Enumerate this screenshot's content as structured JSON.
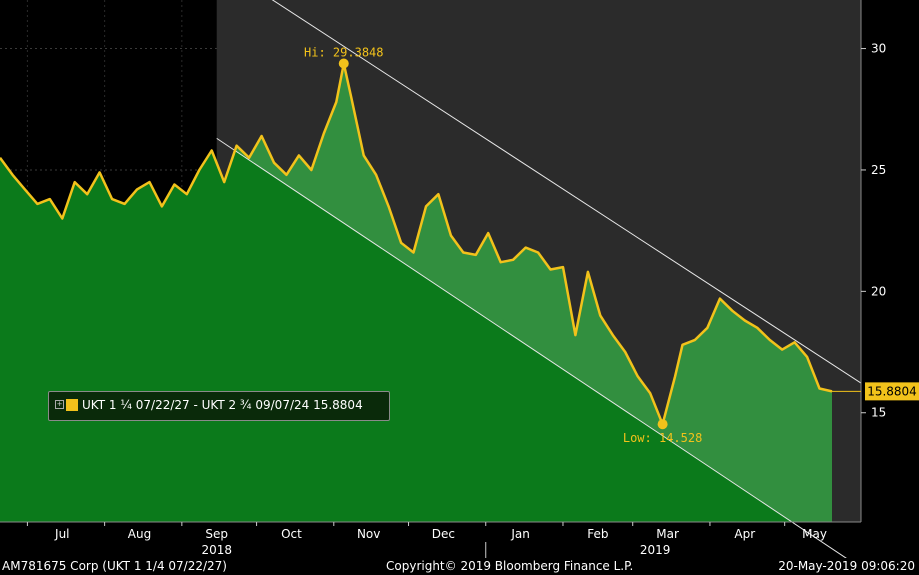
{
  "chart_data": {
    "type": "area",
    "title": "",
    "xlabel": "",
    "ylabel": "",
    "ylim": [
      10.5,
      32
    ],
    "y_ticks": [
      15,
      20,
      25,
      30
    ],
    "month_labels": [
      "Jul",
      "Aug",
      "Sep",
      "Oct",
      "Nov",
      "Dec",
      "Jan",
      "Feb",
      "Mar",
      "Apr",
      "May"
    ],
    "year_labels": [
      "2018",
      "2019"
    ],
    "series": [
      {
        "name": "UKT 1 ¼ 07/22/27 - UKT 2 ¾ 09/07/24",
        "color": "#f2c21b",
        "fill": "#0b7a1b",
        "x": [
          "2018-06-20",
          "2018-06-25",
          "2018-06-30",
          "2018-07-05",
          "2018-07-10",
          "2018-07-15",
          "2018-07-20",
          "2018-07-25",
          "2018-07-30",
          "2018-08-04",
          "2018-08-09",
          "2018-08-14",
          "2018-08-19",
          "2018-08-24",
          "2018-08-29",
          "2018-09-03",
          "2018-09-08",
          "2018-09-13",
          "2018-09-18",
          "2018-09-23",
          "2018-09-28",
          "2018-10-03",
          "2018-10-08",
          "2018-10-13",
          "2018-10-18",
          "2018-10-23",
          "2018-10-28",
          "2018-11-02",
          "2018-11-05",
          "2018-11-08",
          "2018-11-13",
          "2018-11-18",
          "2018-11-23",
          "2018-11-28",
          "2018-12-03",
          "2018-12-08",
          "2018-12-13",
          "2018-12-18",
          "2018-12-23",
          "2018-12-28",
          "2019-01-02",
          "2019-01-07",
          "2019-01-12",
          "2019-01-17",
          "2019-01-22",
          "2019-01-27",
          "2019-02-01",
          "2019-02-06",
          "2019-02-11",
          "2019-02-16",
          "2019-02-21",
          "2019-02-26",
          "2019-03-03",
          "2019-03-08",
          "2019-03-13",
          "2019-03-18",
          "2019-03-21",
          "2019-03-26",
          "2019-03-31",
          "2019-04-05",
          "2019-04-10",
          "2019-04-15",
          "2019-04-20",
          "2019-04-25",
          "2019-04-30",
          "2019-05-05",
          "2019-05-10",
          "2019-05-15",
          "2019-05-20"
        ],
        "values": [
          25.5,
          24.8,
          24.2,
          23.6,
          23.8,
          23.0,
          24.5,
          24.0,
          24.9,
          23.8,
          23.6,
          24.2,
          24.5,
          23.5,
          24.4,
          24.0,
          25.0,
          25.8,
          24.5,
          26.0,
          25.5,
          26.4,
          25.3,
          24.8,
          25.6,
          25.0,
          26.5,
          27.8,
          29.38,
          28.0,
          25.6,
          24.8,
          23.5,
          22.0,
          21.6,
          23.5,
          24.0,
          22.3,
          21.6,
          21.5,
          22.4,
          21.2,
          21.3,
          21.8,
          21.6,
          20.9,
          21.0,
          18.2,
          20.8,
          19.0,
          18.2,
          17.5,
          16.5,
          15.8,
          14.53,
          16.5,
          17.8,
          18.0,
          18.5,
          19.7,
          19.2,
          18.8,
          18.5,
          18.0,
          17.6,
          17.9,
          17.3,
          16.0,
          15.88
        ]
      }
    ],
    "channel": {
      "upper": {
        "x": [
          "2018-09-15",
          "2019-05-20"
        ],
        "values": [
          33.5,
          17.0
        ]
      },
      "lower": {
        "x": [
          "2018-09-15",
          "2019-05-20"
        ],
        "values": [
          26.3,
          9.4
        ]
      }
    },
    "shaded_region_start": "2018-09-15",
    "annotations": {
      "high": {
        "label": "Hi: 29.3848",
        "x": "2018-11-05",
        "y": 29.3848
      },
      "low": {
        "label": "Low: 14.528",
        "x": "2019-03-13",
        "y": 14.528
      },
      "last": {
        "label": "15.8804",
        "y": 15.8804
      }
    },
    "legend_text": "UKT 1 ¼ 07/22/27 - UKT 2 ¾ 09/07/24 15.8804",
    "grid": true
  },
  "footer": {
    "left": "AM781675 Corp (UKT 1 1/4 07/22/27)",
    "center": "Copyright© 2019 Bloomberg Finance L.P.",
    "right": "20-May-2019 09:06:20"
  }
}
